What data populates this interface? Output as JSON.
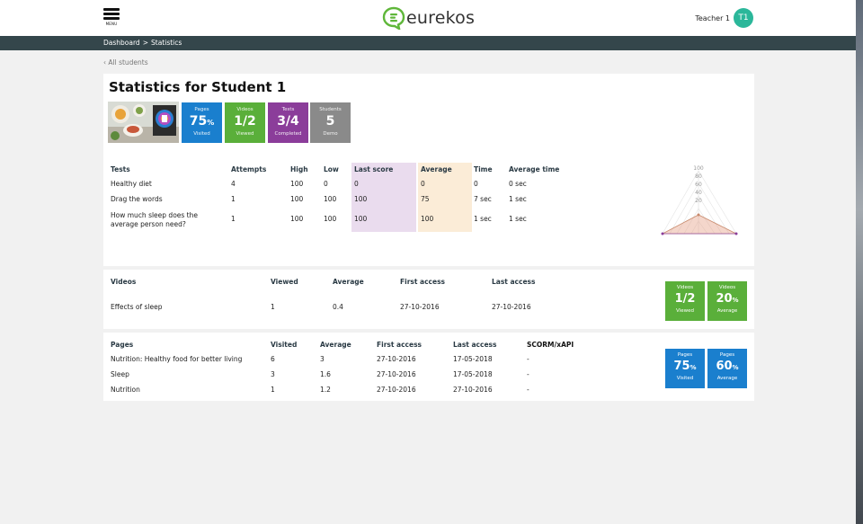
{
  "header": {
    "menu_label": "MENU",
    "logo_text": "eurekos",
    "user_name": "Teacher 1",
    "avatar_initials": "T1",
    "avatar_color": "#2bb79a"
  },
  "breadcrumb": {
    "items": [
      "Dashboard",
      ">",
      "Statistics"
    ]
  },
  "back_link": "All students",
  "page_title": "Statistics for Student 1",
  "summary_tiles": [
    {
      "top": "Pages",
      "value": "75",
      "unit": "%",
      "bottom": "Visited",
      "color": "#1a7fce"
    },
    {
      "top": "Videos",
      "value": "1/2",
      "unit": "",
      "bottom": "Viewed",
      "color": "#5aaf3a"
    },
    {
      "top": "Tests",
      "value": "3/4",
      "unit": "",
      "bottom": "Completed",
      "color": "#8b3d9a"
    },
    {
      "top": "Students",
      "value": "5",
      "unit": "",
      "bottom": "Demo",
      "color": "#8a8a8a"
    }
  ],
  "tests": {
    "headers": [
      "Tests",
      "Attempts",
      "High",
      "Low",
      "Last score",
      "Average",
      "Time",
      "Average time"
    ],
    "rows": [
      [
        "Healthy diet",
        "4",
        "100",
        "0",
        "0",
        "0",
        "0",
        "0 sec"
      ],
      [
        "Drag the words",
        "1",
        "100",
        "100",
        "100",
        "75",
        "7 sec",
        "1 sec"
      ],
      [
        "How much sleep does the average person need?",
        "1",
        "100",
        "100",
        "100",
        "100",
        "1 sec",
        "1 sec"
      ]
    ],
    "radar_ticks": [
      "100",
      "80",
      "60",
      "40",
      "20"
    ]
  },
  "videos": {
    "headers": [
      "Videos",
      "Viewed",
      "Average",
      "First access",
      "Last access"
    ],
    "rows": [
      [
        "Effects of sleep",
        "1",
        "0.4",
        "27-10-2016",
        "27-10-2016"
      ]
    ],
    "tiles": [
      {
        "top": "Videos",
        "value": "1/2",
        "unit": "",
        "bottom": "Viewed"
      },
      {
        "top": "Videos",
        "value": "20",
        "unit": "%",
        "bottom": "Average"
      }
    ]
  },
  "pages": {
    "headers": [
      "Pages",
      "Visited",
      "Average",
      "First access",
      "Last access",
      "SCORM/xAPI"
    ],
    "rows": [
      [
        "Nutrition: Healthy food for better living",
        "6",
        "3",
        "27-10-2016",
        "17-05-2018",
        "-"
      ],
      [
        "Sleep",
        "3",
        "1.6",
        "27-10-2016",
        "17-05-2018",
        "-"
      ],
      [
        "Nutrition",
        "1",
        "1.2",
        "27-10-2016",
        "27-10-2016",
        "-"
      ]
    ],
    "tiles": [
      {
        "top": "Pages",
        "value": "75",
        "unit": "%",
        "bottom": "Visited"
      },
      {
        "top": "Pages",
        "value": "60",
        "unit": "%",
        "bottom": "Average"
      }
    ]
  }
}
